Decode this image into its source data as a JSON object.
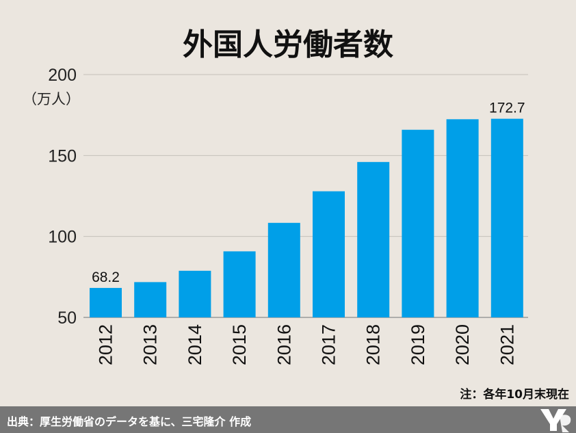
{
  "chart_data": {
    "type": "bar",
    "title": "外国人労働者数",
    "ylabel": "（万人）",
    "xlabel": "",
    "categories": [
      "2012",
      "2013",
      "2014",
      "2015",
      "2016",
      "2017",
      "2018",
      "2019",
      "2020",
      "2021"
    ],
    "values": [
      68.2,
      71.8,
      78.8,
      90.8,
      108.4,
      127.9,
      146.0,
      165.9,
      172.4,
      172.7
    ],
    "data_labels": [
      {
        "index": 0,
        "text": "68.2"
      },
      {
        "index": 9,
        "text": "172.7"
      }
    ],
    "ylim": [
      50,
      200
    ],
    "yticks": [
      50,
      100,
      150,
      200
    ],
    "grid": true,
    "bar_color": "#009fe8",
    "note": "注：各年10月末現在"
  },
  "footer": {
    "source": "出典：厚生労働省のデータを基に、三宅隆介 作成",
    "bar_color": "#767676"
  }
}
